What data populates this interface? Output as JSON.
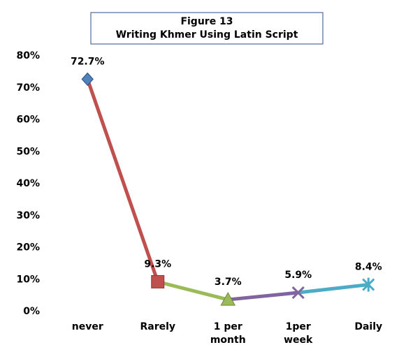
{
  "chart_data": {
    "type": "line",
    "title": "Figure 13",
    "subtitle": "Writing Khmer Using Latin Script",
    "categories": [
      [
        "never"
      ],
      [
        "Rarely"
      ],
      [
        "1 per",
        "month"
      ],
      [
        "1per",
        "week"
      ],
      [
        "Daily"
      ]
    ],
    "values": [
      72.7,
      9.3,
      3.7,
      5.9,
      8.4
    ],
    "value_labels": [
      "72.7%",
      "9.3%",
      "3.7%",
      "5.9%",
      "8.4%"
    ],
    "colors": [
      "#4f81bd",
      "#c0504d",
      "#9bbb59",
      "#8064a2",
      "#4bacc6"
    ],
    "markers": [
      "diamond",
      "square",
      "triangle",
      "x",
      "star"
    ],
    "ylim": [
      0,
      80
    ],
    "yticks": [
      {
        "value": 0,
        "label": "0%"
      },
      {
        "value": 10,
        "label": "10%"
      },
      {
        "value": 20,
        "label": "20%"
      },
      {
        "value": 30,
        "label": "30%"
      },
      {
        "value": 40,
        "label": "40%"
      },
      {
        "value": 50,
        "label": "50%"
      },
      {
        "value": 60,
        "label": "60%"
      },
      {
        "value": 70,
        "label": "70%"
      },
      {
        "value": 80,
        "label": "80%"
      }
    ],
    "grid": false
  }
}
